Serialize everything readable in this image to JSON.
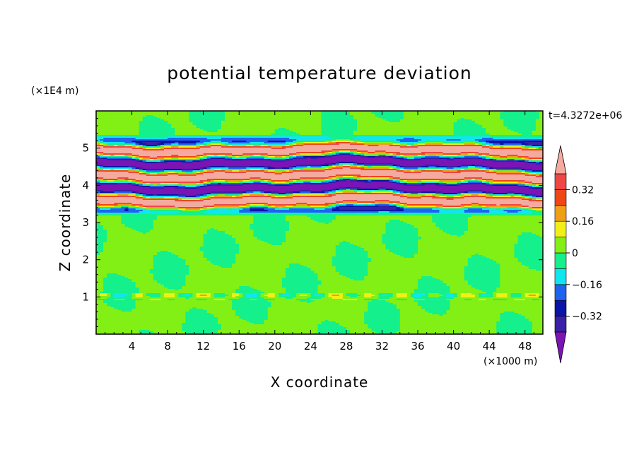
{
  "chart_data": {
    "type": "heatmap",
    "title": "potential temperature deviation",
    "xlabel": "X coordinate",
    "ylabel": "Z coordinate",
    "x_unit": "(×1000 m)",
    "y_unit": "(×1E4 m)",
    "time_label": "t=4.3272e+06",
    "xlim": [
      0,
      50
    ],
    "ylim": [
      0,
      6
    ],
    "x_ticks": [
      4,
      8,
      12,
      16,
      20,
      24,
      28,
      32,
      36,
      40,
      44,
      48
    ],
    "y_ticks": [
      1,
      2,
      3,
      4,
      5
    ],
    "colorbar": {
      "levels": [
        -0.4,
        -0.32,
        -0.24,
        -0.16,
        -0.08,
        0,
        0.08,
        0.16,
        0.24,
        0.32,
        0.4
      ],
      "labels": [
        "0.32",
        "0.16",
        "0",
        "−0.16",
        "−0.32"
      ],
      "label_values": [
        0.32,
        0.16,
        0,
        -0.16,
        -0.32
      ],
      "colors": [
        "#7a14b4",
        "#3a1fa8",
        "#0a14a8",
        "#1e64f0",
        "#10e6f0",
        "#14f08c",
        "#82f014",
        "#f0f014",
        "#f0a014",
        "#f04614",
        "#f04646",
        "#f5aaa0"
      ],
      "extend": "both"
    }
  }
}
